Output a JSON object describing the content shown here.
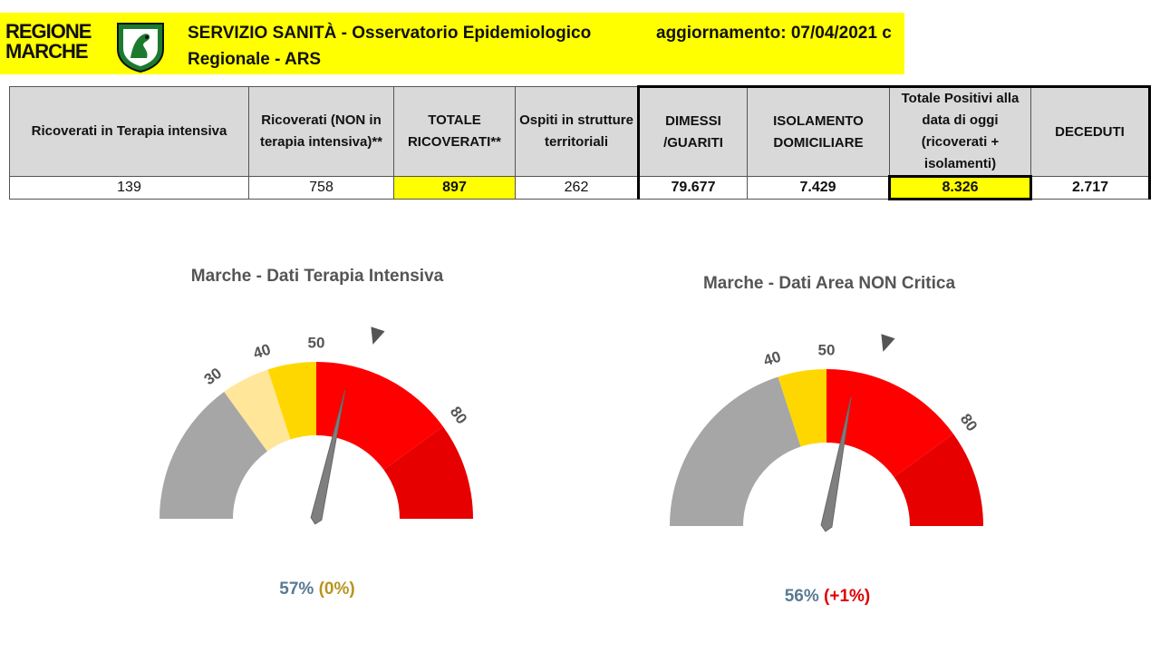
{
  "header": {
    "logo_line1": "REGIONE",
    "logo_line2": "MARCHE",
    "title_line1": "SERVIZIO SANITÀ - Osservatorio Epidemiologico",
    "title_line2": "Regionale - ARS",
    "update": "aggiornamento: 07/04/2021 c"
  },
  "table": {
    "headers": [
      "Ricoverati in Terapia intensiva",
      "Ricoverati (NON in terapia intensiva)**",
      "TOTALE RICOVERATI**",
      "Ospiti in strutture territoriali",
      "DIMESSI /GUARITI",
      "ISOLAMENTO DOMICILIARE",
      "Totale Positivi alla data di oggi (ricoverati + isolamenti)",
      "DECEDUTI"
    ],
    "values": [
      "139",
      "758",
      "897",
      "262",
      "79.677",
      "7.429",
      "8.326",
      "2.717"
    ]
  },
  "chart_data": [
    {
      "type": "gauge",
      "title": "Marche - Dati Terapia Intensiva",
      "value_label": "57%",
      "delta_label": "(0%)",
      "value": 57,
      "range": [
        0,
        100
      ],
      "threshold_marker": 60,
      "tick_labels": [
        "30",
        "40",
        "50",
        "80"
      ],
      "bands": [
        {
          "from": 0,
          "to": 30,
          "color": "#a6a6a6"
        },
        {
          "from": 30,
          "to": 40,
          "color": "#ffe699"
        },
        {
          "from": 40,
          "to": 50,
          "color": "#ffd700"
        },
        {
          "from": 50,
          "to": 80,
          "color": "#ff0000"
        },
        {
          "from": 80,
          "to": 100,
          "color": "#e60000"
        }
      ]
    },
    {
      "type": "gauge",
      "title": "Marche - Dati Area NON Critica",
      "value_label": "56%",
      "delta_label": "(+1%)",
      "value": 56,
      "range": [
        0,
        100
      ],
      "threshold_marker": 60,
      "tick_labels": [
        "40",
        "50",
        "80"
      ],
      "bands": [
        {
          "from": 0,
          "to": 40,
          "color": "#a6a6a6"
        },
        {
          "from": 40,
          "to": 50,
          "color": "#ffd700"
        },
        {
          "from": 50,
          "to": 80,
          "color": "#ff0000"
        },
        {
          "from": 80,
          "to": 100,
          "color": "#e60000"
        }
      ]
    }
  ],
  "colors": {
    "header_bg": "#ffff00",
    "highlight": "#ffff00",
    "needle": "#7f7f7f"
  }
}
